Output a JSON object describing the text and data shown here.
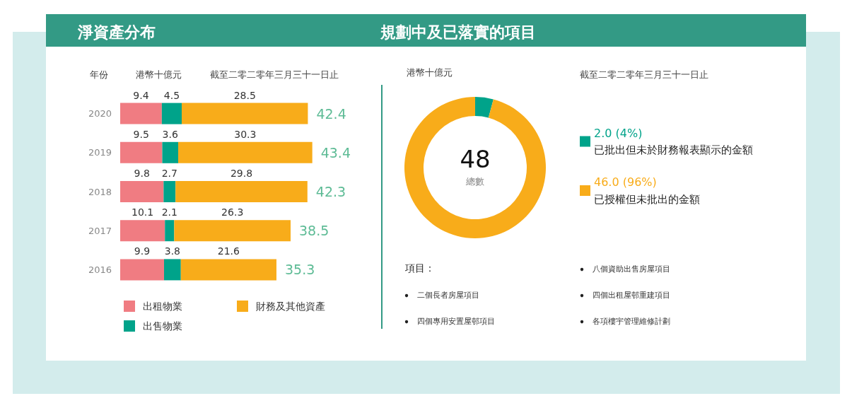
{
  "chart_data": [
    {
      "type": "bar",
      "orientation": "horizontal",
      "stacked": true,
      "title": "淨資產分布",
      "subtitle": "截至二零二零年三月三十一日止",
      "ylabel": "年份",
      "xlabel": "港幣十億元",
      "categories": [
        "2020",
        "2019",
        "2018",
        "2017",
        "2016"
      ],
      "series": [
        {
          "name": "出租物業",
          "color": "#f07c82",
          "values": [
            9.4,
            9.5,
            9.8,
            10.1,
            9.9
          ]
        },
        {
          "name": "出售物業",
          "color": "#00a38a",
          "values": [
            4.5,
            3.6,
            2.7,
            2.1,
            3.8
          ]
        },
        {
          "name": "財務及其他資產",
          "color": "#f8ac1a",
          "values": [
            28.5,
            30.3,
            29.8,
            26.3,
            21.6
          ]
        }
      ],
      "data_labels": true,
      "totals": [
        "42.4",
        "43.4",
        "42.3",
        "38.5",
        "35.3"
      ],
      "legend": "bottom"
    },
    {
      "type": "donut",
      "title": "規劃中及已落實的項目",
      "subtitle": "截至二零二零年三月三十一日止",
      "categories": [
        "已批出但未於財務報表顯示的金額",
        "已授權但未批出的金額"
      ],
      "values": [
        2.0,
        46.0
      ],
      "colors": [
        "#00a38a",
        "#f8ac1a"
      ],
      "value_labels": [
        "2.0 (4%)",
        "46.0 (96%)"
      ],
      "legend": "right",
      "annotations": [
        "港幣十億元",
        "48",
        "總數",
        "項目：",
        "二個長者房屋項目",
        "四個專用安置屋邨項目",
        "八個資助出售房屋項目",
        "四個出租屋邨重建項目",
        "各項樓宇管理維修計劃"
      ]
    }
  ]
}
